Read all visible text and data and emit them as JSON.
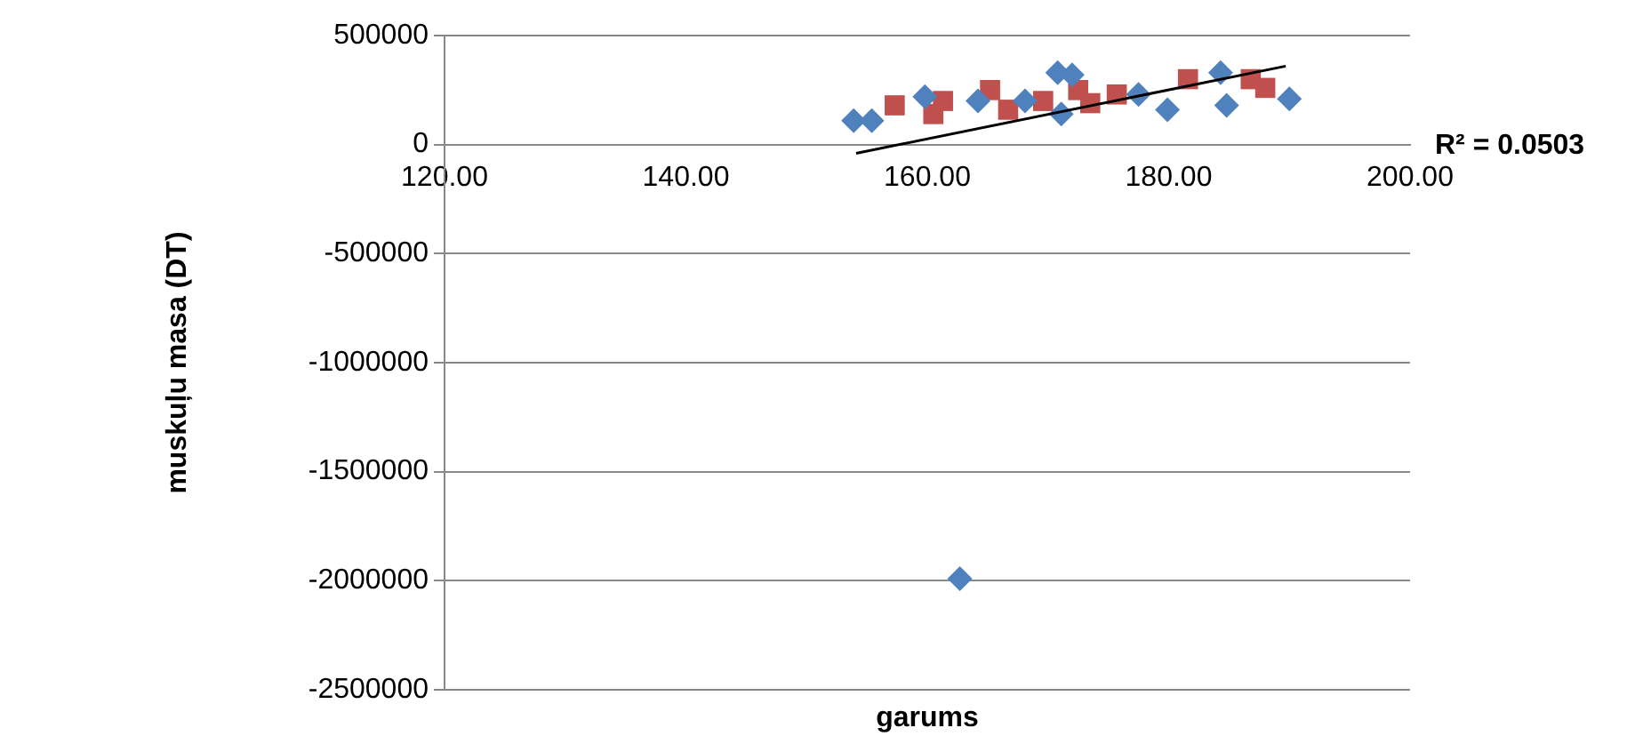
{
  "chart_data": {
    "type": "scatter",
    "xlabel": "garums",
    "ylabel": "muskuļu masa (DT)",
    "xlim": [
      120,
      200
    ],
    "xticks": [
      {
        "value": 120,
        "label": "120.00"
      },
      {
        "value": 140,
        "label": "140.00"
      },
      {
        "value": 160,
        "label": "160.00"
      },
      {
        "value": 180,
        "label": "180.00"
      },
      {
        "value": 200,
        "label": "200.00"
      }
    ],
    "ylim": [
      -2500000,
      500000
    ],
    "yticks": [
      -2500000,
      -2000000,
      -1500000,
      -1000000,
      -500000,
      0,
      500000
    ],
    "grid": "y",
    "legend": false,
    "annotations": [
      "R² = 0.0503"
    ],
    "series": [
      {
        "marker": "diamond",
        "color": "#4f81bd",
        "x": [
          153.9,
          155.4,
          159.8,
          164.2,
          168.1,
          170.8,
          172.0,
          171.1,
          177.5,
          179.9,
          184.3,
          184.8,
          190.0,
          162.7
        ],
        "values": [
          110000,
          110000,
          220000,
          200000,
          200000,
          330000,
          320000,
          140000,
          230000,
          160000,
          330000,
          180000,
          210000,
          -1990000
        ]
      },
      {
        "marker": "square",
        "color": "#c0504d",
        "x": [
          157.3,
          160.5,
          161.3,
          165.2,
          166.7,
          169.6,
          172.5,
          173.5,
          175.7,
          181.6,
          186.8,
          188.0
        ],
        "values": [
          180000,
          140000,
          200000,
          250000,
          160000,
          200000,
          250000,
          190000,
          230000,
          300000,
          300000,
          260000
        ]
      },
      {
        "type": "line",
        "marker": "none",
        "color": "#000000",
        "x": [
          154.1,
          189.7
        ],
        "values": [
          -40000,
          360000
        ]
      }
    ]
  }
}
